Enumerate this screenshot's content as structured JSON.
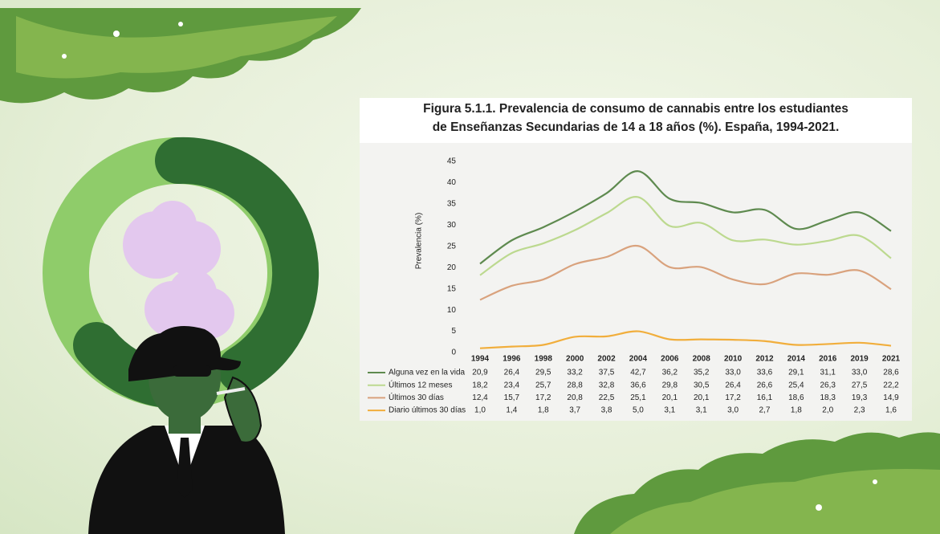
{
  "chart_data": {
    "type": "line",
    "title": "Figura 5.1.1. Prevalencia de consumo de cannabis entre los estudiantes de Enseñanzas Secundarias de 14 a 18 años (%). España, 1994-2021.",
    "y_label": "Prevalencia (%)",
    "categories": [
      "1994",
      "1996",
      "1998",
      "2000",
      "2002",
      "2004",
      "2006",
      "2008",
      "2010",
      "2012",
      "2014",
      "2016",
      "2019",
      "2021"
    ],
    "ylim": [
      0,
      45
    ],
    "yticks": [
      0,
      5,
      10,
      15,
      20,
      25,
      30,
      35,
      40,
      45
    ],
    "series": [
      {
        "name": "Alguna vez en la vida",
        "color": "#5e8a4f",
        "values": [
          20.9,
          26.4,
          29.5,
          33.2,
          37.5,
          42.7,
          36.2,
          35.2,
          33.0,
          33.6,
          29.1,
          31.1,
          33.0,
          28.6
        ],
        "value_labels": [
          "20,9",
          "26,4",
          "29,5",
          "33,2",
          "37,5",
          "42,7",
          "36,2",
          "35,2",
          "33,0",
          "33,6",
          "29,1",
          "31,1",
          "33,0",
          "28,6"
        ]
      },
      {
        "name": "Últimos 12 meses",
        "color": "#bcd98f",
        "values": [
          18.2,
          23.4,
          25.7,
          28.8,
          32.8,
          36.6,
          29.8,
          30.5,
          26.4,
          26.6,
          25.4,
          26.3,
          27.5,
          22.2
        ],
        "value_labels": [
          "18,2",
          "23,4",
          "25,7",
          "28,8",
          "32,8",
          "36,6",
          "29,8",
          "30,5",
          "26,4",
          "26,6",
          "25,4",
          "26,3",
          "27,5",
          "22,2"
        ]
      },
      {
        "name": "Últimos 30 días",
        "color": "#d9a27d",
        "values": [
          12.4,
          15.7,
          17.2,
          20.8,
          22.5,
          25.1,
          20.1,
          20.1,
          17.2,
          16.1,
          18.6,
          18.3,
          19.3,
          14.9
        ],
        "value_labels": [
          "12,4",
          "15,7",
          "17,2",
          "20,8",
          "22,5",
          "25,1",
          "20,1",
          "20,1",
          "17,2",
          "16,1",
          "18,6",
          "18,3",
          "19,3",
          "14,9"
        ]
      },
      {
        "name": "Diario últimos 30 días",
        "color": "#f1ae3c",
        "values": [
          1.0,
          1.4,
          1.8,
          3.7,
          3.8,
          5.0,
          3.1,
          3.1,
          3.0,
          2.7,
          1.8,
          2.0,
          2.3,
          1.6
        ],
        "value_labels": [
          "1,0",
          "1,4",
          "1,8",
          "3,7",
          "3,8",
          "5,0",
          "3,1",
          "3,1",
          "3,0",
          "2,7",
          "1,8",
          "2,0",
          "2,3",
          "1,6"
        ]
      }
    ]
  }
}
